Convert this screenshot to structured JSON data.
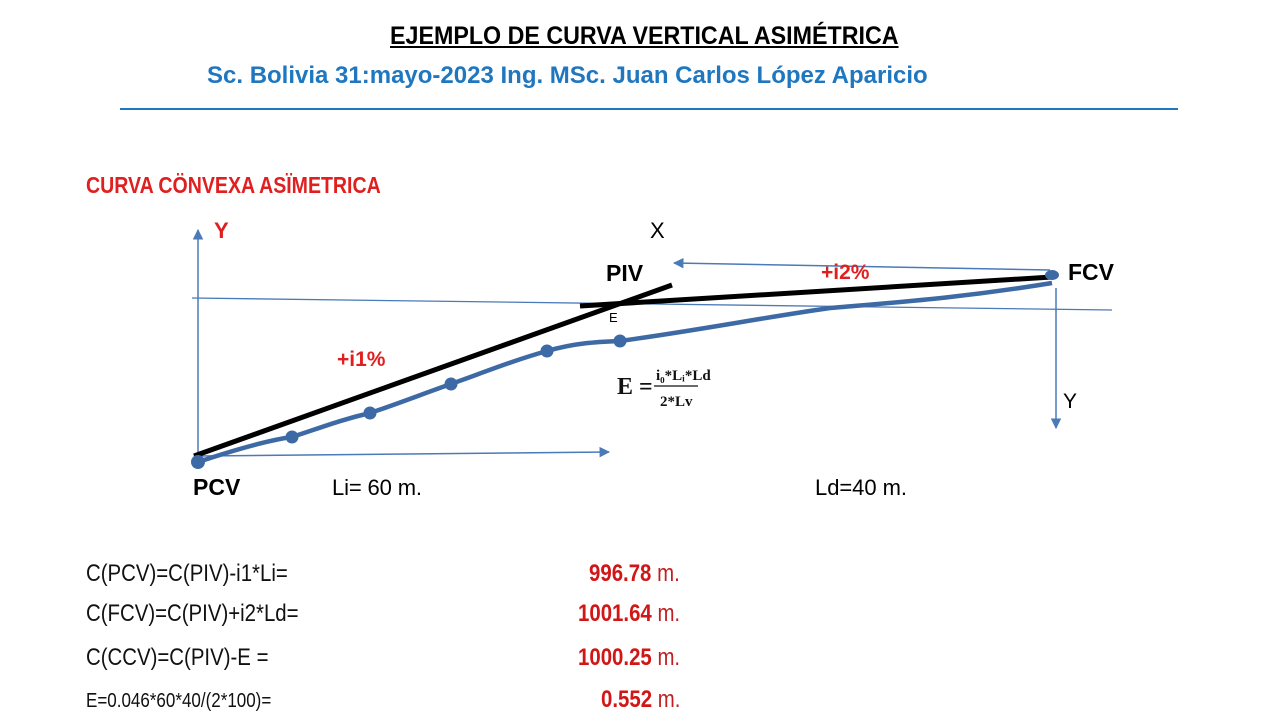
{
  "header": {
    "title": "EJEMPLO DE CURVA VERTICAL ASIMÉTRICA",
    "subtitle": "Sc. Bolivia  31:mayo-2023  Ing. MSc. Juan Carlos López Aparicio"
  },
  "section_title": "CURVA CÖNVEXA ASÏMETRICA",
  "diagram": {
    "labels": {
      "y_left": "Y",
      "x": "X",
      "piv": "PIV",
      "fcv": "FCV",
      "pcv": "PCV",
      "e_mark": "E",
      "i1": "+i1%",
      "i2": "+i2%",
      "y_right": "Y",
      "li": "Li= 60 m.",
      "ld": "Ld=40 m."
    },
    "formula": {
      "lhs": "E =",
      "numerator": "i₀*Lᵢ*Ld",
      "denominator": "2*Lv"
    },
    "colors": {
      "curve": "#3d6aa5",
      "tangent": "#000000",
      "axis": "#4a7ab8",
      "accent": "#e02020"
    }
  },
  "calculations": [
    {
      "expr": "C(PCV)=C(PIV)-i1*Li=",
      "value": "996.78",
      "unit": "m."
    },
    {
      "expr": "C(FCV)=C(PIV)+i2*Ld=",
      "value": "1001.64",
      "unit": "m."
    },
    {
      "expr": "C(CCV)=C(PIV)-E =",
      "value": "1000.25",
      "unit": "m."
    },
    {
      "expr": "E=0.046*60*40/(2*100)=",
      "value": "0.552",
      "unit": "m."
    }
  ]
}
